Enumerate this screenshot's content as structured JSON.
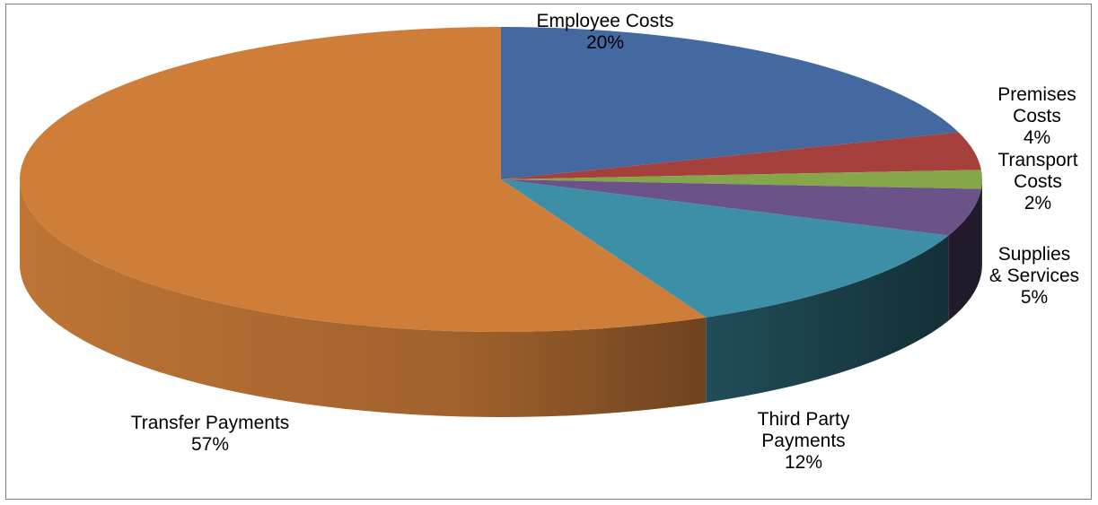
{
  "chart_data": {
    "type": "pie",
    "style": "3d",
    "slices": [
      {
        "name": "Employee Costs",
        "label_lines": [
          "Employee Costs"
        ],
        "value": 20,
        "value_label": "20%",
        "color": "#4369a0"
      },
      {
        "name": "Premises Costs",
        "label_lines": [
          "Premises",
          "Costs"
        ],
        "value": 4,
        "value_label": "4%",
        "color": "#a6403c"
      },
      {
        "name": "Transport Costs",
        "label_lines": [
          "Transport",
          "Costs"
        ],
        "value": 2,
        "value_label": "2%",
        "color": "#86a64a"
      },
      {
        "name": "Supplies & Services",
        "label_lines": [
          "Supplies",
          "& Services"
        ],
        "value": 5,
        "value_label": "5%",
        "color": "#6b5389"
      },
      {
        "name": "Third Party Payments",
        "label_lines": [
          "Third Party",
          "Payments"
        ],
        "value": 12,
        "value_label": "12%",
        "color": "#3c8fa6"
      },
      {
        "name": "Transfer Payments",
        "label_lines": [
          "Transfer Payments"
        ],
        "value": 57,
        "value_label": "57%",
        "color": "#cf7e3a"
      }
    ],
    "legend": "none"
  }
}
